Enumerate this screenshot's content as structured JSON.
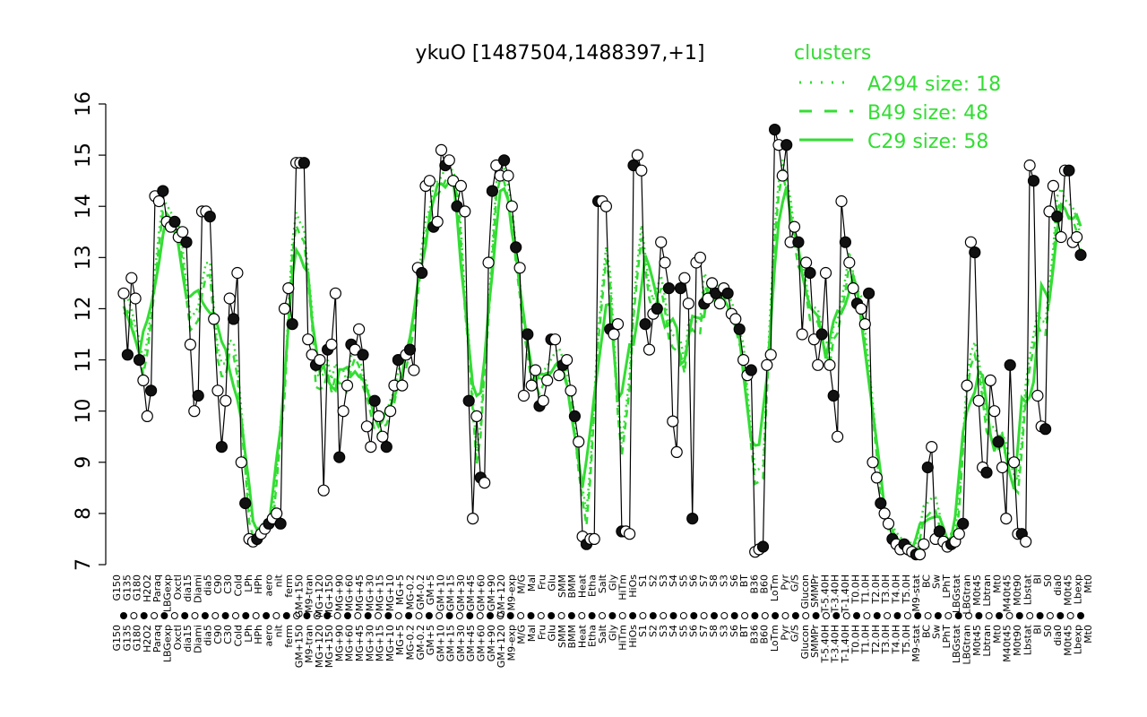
{
  "colors": {
    "accent": "#33dd33",
    "marker_fill_dark": "#111111",
    "marker_fill_light": "#ffffff",
    "marker_stroke": "#000000"
  },
  "chart_data": {
    "type": "line",
    "title": "ykuO [1487504,1488397,+1]",
    "xlabel": "",
    "ylabel": "",
    "ylim": [
      7,
      16
    ],
    "yticks": [
      7,
      8,
      9,
      10,
      11,
      12,
      13,
      14,
      15,
      16
    ],
    "legend": {
      "title": "clusters",
      "placement": "top-right",
      "entries": [
        {
          "label": "A294 size: 18",
          "style": "dotted"
        },
        {
          "label": "B49 size: 48",
          "style": "dashed"
        },
        {
          "label": "C29 size: 58",
          "style": "solid"
        }
      ]
    },
    "xlabels": [
      "G150",
      "G135",
      "G180",
      "H2O2",
      "Paraq",
      "LBGexp",
      "Oxctl",
      "dia15",
      "Diami",
      "dia5",
      "C90",
      "C30",
      "Cold",
      "LPh",
      "HPh",
      "aero",
      "nit",
      "ferm",
      "GM+150",
      "M9-tran",
      "MG+120",
      "MG+150",
      "MG+90",
      "MG+60",
      "MG+45",
      "MG+30",
      "MG+15",
      "MG+10",
      "MG+5",
      "MG-0.2",
      "GM-0.2",
      "GM+5",
      "GM+10",
      "GM+15",
      "GM+30",
      "GM+45",
      "GM+60",
      "GM+90",
      "GM+120",
      "M9-exp",
      "M/G",
      "Mal",
      "Fru",
      "Glu",
      "SMM",
      "BMM",
      "Heat",
      "Etha",
      "Salt",
      "Gly",
      "HiTm",
      "HiOs",
      "S1",
      "S2",
      "S3",
      "S4",
      "S5",
      "S6",
      "S7",
      "S8",
      "S3",
      "S6",
      "BT",
      "B36",
      "B60",
      "LoTm",
      "Pyr",
      "G/S",
      "Glucon",
      "SMMPr",
      "T-5.40H",
      "T-3.40H",
      "T-1.40H",
      "T0.0H",
      "T1.0H",
      "T2.0H",
      "T3.0H",
      "T4.0H",
      "T5.0H",
      "M9-stat",
      "BC",
      "Sw",
      "LPhT",
      "LBGstat",
      "LBGtran",
      "M0t45",
      "Lbtran",
      "Mt0",
      "M40t45",
      "M0t90",
      "Lbstat",
      "BI",
      "S0",
      "dia0",
      "M0t45",
      "Lbexp",
      "Mt0"
    ],
    "series": [
      {
        "name": "ykuO",
        "style": "points-line",
        "values": [
          12.3,
          11.1,
          12.6,
          12.2,
          11.0,
          10.6,
          9.9,
          10.4,
          14.2,
          14.1,
          14.3,
          13.7,
          13.6,
          13.7,
          13.4,
          13.5,
          13.3,
          11.3,
          10.0,
          10.3,
          13.9,
          13.9,
          13.8,
          11.8,
          10.4,
          9.3,
          10.2,
          12.2,
          11.8,
          12.7,
          9.0,
          8.2,
          7.5,
          7.45,
          7.5,
          7.6,
          7.7,
          7.8,
          7.9,
          8.0,
          7.8,
          12.0,
          12.4,
          11.7,
          14.85,
          14.85,
          14.85,
          11.4,
          11.1,
          10.9,
          11.0,
          8.45,
          11.2,
          11.3,
          12.3,
          9.1,
          10.0,
          10.5,
          11.3,
          11.2,
          11.6,
          11.1,
          9.7,
          9.3,
          10.2,
          9.9,
          9.5,
          9.3,
          10.0,
          10.5,
          11.0,
          10.5,
          11.1,
          11.2,
          10.8,
          12.8,
          12.7,
          14.4,
          14.5,
          13.6,
          13.7,
          15.1,
          14.8,
          14.9,
          14.5,
          14.0,
          14.4,
          13.9,
          10.2,
          7.9,
          9.9,
          8.7,
          8.6,
          12.9,
          14.3,
          14.8,
          14.6,
          14.9,
          14.6,
          14.0,
          13.2,
          12.8,
          10.3,
          11.5,
          10.5,
          10.8,
          10.1,
          10.2,
          10.6,
          11.4,
          11.4,
          10.7,
          10.9,
          11.0,
          10.4,
          9.9,
          9.4,
          7.55,
          7.4,
          7.5,
          7.5,
          14.1,
          14.1,
          14.0,
          11.6,
          11.5,
          11.7,
          7.65,
          7.65,
          7.6,
          14.8,
          15.0,
          14.7,
          11.7,
          11.2,
          11.9,
          12.0,
          13.3,
          12.9,
          12.4,
          9.8,
          9.2,
          12.4,
          12.6,
          12.1,
          7.9,
          12.9,
          13.0,
          12.1,
          12.2,
          12.5,
          12.3,
          12.1,
          12.4,
          12.3,
          11.9,
          11.8,
          11.6,
          11.0,
          10.7,
          10.8,
          7.25,
          7.3,
          7.35,
          10.9,
          11.1,
          15.5,
          15.2,
          14.6,
          15.2,
          13.3,
          13.6,
          13.3,
          11.5,
          12.9,
          12.7,
          11.4,
          10.9,
          11.5,
          12.7,
          10.9,
          10.3,
          9.5,
          14.1,
          13.3,
          12.9,
          12.4,
          12.1,
          12.0,
          11.7,
          12.3,
          9.0,
          8.7,
          8.2,
          8.0,
          7.8,
          7.5,
          7.4,
          7.3,
          7.4,
          7.3,
          7.25,
          7.2,
          7.2,
          7.4,
          8.9,
          9.3,
          7.5,
          7.65,
          7.45,
          7.35,
          7.4,
          7.45,
          7.6,
          7.8,
          10.5,
          13.3,
          13.1,
          10.2,
          8.9,
          8.8,
          10.6,
          10.0,
          9.4,
          8.9,
          7.9,
          10.9,
          9.0,
          7.6,
          7.6,
          7.45,
          14.8,
          14.5,
          10.3,
          9.7,
          9.65,
          13.9,
          14.4,
          13.8,
          13.4,
          14.7,
          14.7,
          13.3,
          13.4,
          13.05
        ]
      },
      {
        "name": "A294",
        "style": "dotted"
      },
      {
        "name": "B49",
        "style": "dashed"
      },
      {
        "name": "C29",
        "style": "solid"
      }
    ]
  }
}
